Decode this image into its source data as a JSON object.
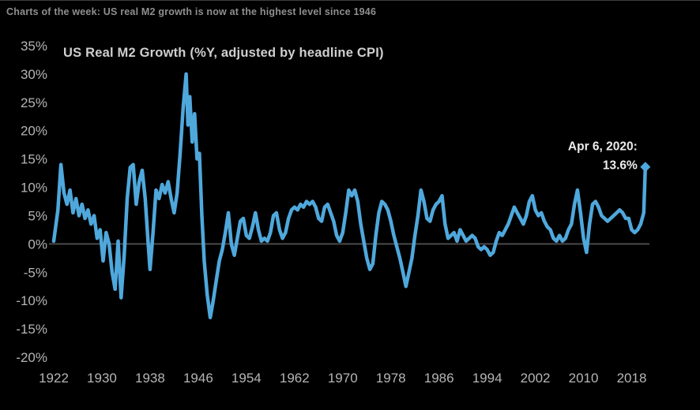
{
  "header": {
    "title": "Charts of the week: US real M2 growth is now at the highest level since 1946"
  },
  "chart_data": {
    "type": "line",
    "title": "US Real M2 Growth (%Y, adjusted by headline CPI)",
    "xlabel": "",
    "ylabel": "",
    "xlim": [
      1922,
      2022
    ],
    "ylim": [
      -20,
      35
    ],
    "x_ticks": [
      1922,
      1930,
      1938,
      1946,
      1954,
      1962,
      1970,
      1978,
      1986,
      1994,
      2002,
      2010,
      2018
    ],
    "y_ticks": [
      35,
      30,
      25,
      20,
      15,
      10,
      5,
      0,
      -5,
      -10,
      -15,
      -20
    ],
    "y_tick_suffix": "%",
    "grid": false,
    "zero_line": true,
    "legend": "none",
    "line_color": "#4FA8DC",
    "axis_text_color": "#b5b5b5",
    "background_color": "#000000",
    "annotation": {
      "text_line1": "Apr 6, 2020:",
      "text_line2": "13.6%",
      "x": 2020.27,
      "y": 13.6,
      "marker": "diamond"
    },
    "series": [
      {
        "name": "US Real M2 Growth (%Y, adjusted by headline CPI)",
        "points": [
          [
            1922,
            0.5
          ],
          [
            1922.7,
            6
          ],
          [
            1923.2,
            14
          ],
          [
            1923.7,
            9
          ],
          [
            1924.2,
            7
          ],
          [
            1924.7,
            9.5
          ],
          [
            1925.2,
            5.5
          ],
          [
            1925.7,
            8
          ],
          [
            1926.2,
            5
          ],
          [
            1926.7,
            7
          ],
          [
            1927.2,
            4.5
          ],
          [
            1927.7,
            6
          ],
          [
            1928.2,
            3.5
          ],
          [
            1928.7,
            5
          ],
          [
            1929.2,
            1
          ],
          [
            1929.7,
            2.5
          ],
          [
            1930.2,
            -3
          ],
          [
            1930.7,
            2
          ],
          [
            1931.2,
            0
          ],
          [
            1931.7,
            -5
          ],
          [
            1932.2,
            -8
          ],
          [
            1932.7,
            0.5
          ],
          [
            1933.2,
            -9.5
          ],
          [
            1933.7,
            -2
          ],
          [
            1934.2,
            8
          ],
          [
            1934.7,
            13.5
          ],
          [
            1935.2,
            14
          ],
          [
            1935.7,
            7
          ],
          [
            1936.2,
            11
          ],
          [
            1936.7,
            13
          ],
          [
            1937.2,
            8
          ],
          [
            1937.7,
            0
          ],
          [
            1938,
            -4.5
          ],
          [
            1938.5,
            2
          ],
          [
            1939,
            9.5
          ],
          [
            1939.5,
            8
          ],
          [
            1940,
            10.5
          ],
          [
            1940.5,
            9
          ],
          [
            1941,
            11
          ],
          [
            1941.5,
            8
          ],
          [
            1942,
            5.5
          ],
          [
            1942.5,
            9
          ],
          [
            1943,
            16
          ],
          [
            1943.5,
            24
          ],
          [
            1944,
            30
          ],
          [
            1944.3,
            21
          ],
          [
            1944.6,
            26
          ],
          [
            1945,
            18
          ],
          [
            1945.4,
            23
          ],
          [
            1945.8,
            15
          ],
          [
            1946.2,
            16
          ],
          [
            1946.6,
            5
          ],
          [
            1947,
            -3
          ],
          [
            1947.5,
            -9
          ],
          [
            1948,
            -13
          ],
          [
            1948.5,
            -10
          ],
          [
            1949,
            -6.5
          ],
          [
            1949.5,
            -3
          ],
          [
            1950,
            -1
          ],
          [
            1950.5,
            2
          ],
          [
            1951,
            5.5
          ],
          [
            1951.5,
            0
          ],
          [
            1952,
            -2
          ],
          [
            1952.5,
            1
          ],
          [
            1953,
            4
          ],
          [
            1953.5,
            4.5
          ],
          [
            1954,
            1.5
          ],
          [
            1954.5,
            1
          ],
          [
            1955,
            3
          ],
          [
            1955.5,
            5.5
          ],
          [
            1956,
            2.5
          ],
          [
            1956.5,
            0.5
          ],
          [
            1957,
            1
          ],
          [
            1957.5,
            0.5
          ],
          [
            1958,
            2
          ],
          [
            1958.5,
            5
          ],
          [
            1959,
            5.5
          ],
          [
            1959.5,
            2.5
          ],
          [
            1960,
            1
          ],
          [
            1960.5,
            2
          ],
          [
            1961,
            4.5
          ],
          [
            1961.5,
            6
          ],
          [
            1962,
            6.5
          ],
          [
            1962.5,
            6
          ],
          [
            1963,
            7
          ],
          [
            1963.5,
            6.5
          ],
          [
            1964,
            7.5
          ],
          [
            1964.5,
            7
          ],
          [
            1965,
            7.5
          ],
          [
            1965.5,
            6.5
          ],
          [
            1966,
            4.5
          ],
          [
            1966.5,
            4
          ],
          [
            1967,
            6.5
          ],
          [
            1967.5,
            7
          ],
          [
            1968,
            5.5
          ],
          [
            1968.5,
            4
          ],
          [
            1969,
            1.5
          ],
          [
            1969.5,
            0.5
          ],
          [
            1970,
            2
          ],
          [
            1970.5,
            5.5
          ],
          [
            1971,
            9.5
          ],
          [
            1971.5,
            8.5
          ],
          [
            1972,
            9.5
          ],
          [
            1972.5,
            7.5
          ],
          [
            1973,
            3.5
          ],
          [
            1973.5,
            0.5
          ],
          [
            1974,
            -2.5
          ],
          [
            1974.5,
            -4.5
          ],
          [
            1975,
            -3.5
          ],
          [
            1975.5,
            1.5
          ],
          [
            1976,
            5.5
          ],
          [
            1976.5,
            7.5
          ],
          [
            1977,
            7
          ],
          [
            1977.5,
            6
          ],
          [
            1978,
            4
          ],
          [
            1978.5,
            1.5
          ],
          [
            1979,
            -0.5
          ],
          [
            1979.5,
            -2.5
          ],
          [
            1980,
            -5
          ],
          [
            1980.5,
            -7.5
          ],
          [
            1981,
            -5
          ],
          [
            1981.5,
            -2.5
          ],
          [
            1982,
            1.5
          ],
          [
            1982.5,
            5
          ],
          [
            1983,
            9.5
          ],
          [
            1983.5,
            7.5
          ],
          [
            1984,
            4.5
          ],
          [
            1984.5,
            4
          ],
          [
            1985,
            6
          ],
          [
            1985.5,
            7
          ],
          [
            1986,
            7.5
          ],
          [
            1986.5,
            8.5
          ],
          [
            1987,
            3.5
          ],
          [
            1987.5,
            1
          ],
          [
            1988,
            1.5
          ],
          [
            1988.5,
            2
          ],
          [
            1989,
            0.5
          ],
          [
            1989.5,
            2.5
          ],
          [
            1990,
            1.5
          ],
          [
            1990.5,
            0.5
          ],
          [
            1991,
            1
          ],
          [
            1991.5,
            1.5
          ],
          [
            1992,
            1
          ],
          [
            1992.5,
            -0.5
          ],
          [
            1993,
            -1
          ],
          [
            1993.5,
            -0.5
          ],
          [
            1994,
            -1
          ],
          [
            1994.5,
            -2
          ],
          [
            1995,
            -1.5
          ],
          [
            1995.5,
            0.5
          ],
          [
            1996,
            2
          ],
          [
            1996.5,
            1.5
          ],
          [
            1997,
            2.5
          ],
          [
            1997.5,
            3.5
          ],
          [
            1998,
            5
          ],
          [
            1998.5,
            6.5
          ],
          [
            1999,
            5.5
          ],
          [
            1999.5,
            4.5
          ],
          [
            2000,
            3.5
          ],
          [
            2000.5,
            5
          ],
          [
            2001,
            7.5
          ],
          [
            2001.5,
            8.5
          ],
          [
            2002,
            6
          ],
          [
            2002.5,
            5
          ],
          [
            2003,
            5.5
          ],
          [
            2003.5,
            4
          ],
          [
            2004,
            3
          ],
          [
            2004.5,
            2.5
          ],
          [
            2005,
            1
          ],
          [
            2005.5,
            0.5
          ],
          [
            2006,
            1.5
          ],
          [
            2006.5,
            0.5
          ],
          [
            2007,
            1
          ],
          [
            2007.5,
            2.5
          ],
          [
            2008,
            3.5
          ],
          [
            2008.5,
            7
          ],
          [
            2009,
            9.5
          ],
          [
            2009.5,
            5.5
          ],
          [
            2010,
            1
          ],
          [
            2010.5,
            -1.5
          ],
          [
            2011,
            3.5
          ],
          [
            2011.5,
            7
          ],
          [
            2012,
            7.5
          ],
          [
            2012.5,
            6.5
          ],
          [
            2013,
            5
          ],
          [
            2013.5,
            4.5
          ],
          [
            2014,
            4
          ],
          [
            2014.5,
            4.5
          ],
          [
            2015,
            5
          ],
          [
            2015.5,
            5.5
          ],
          [
            2016,
            6
          ],
          [
            2016.5,
            5.5
          ],
          [
            2017,
            4.5
          ],
          [
            2017.5,
            4.5
          ],
          [
            2018,
            2.5
          ],
          [
            2018.5,
            2
          ],
          [
            2019,
            2.5
          ],
          [
            2019.5,
            3.5
          ],
          [
            2020,
            5.5
          ],
          [
            2020.27,
            13.6
          ]
        ]
      }
    ]
  }
}
